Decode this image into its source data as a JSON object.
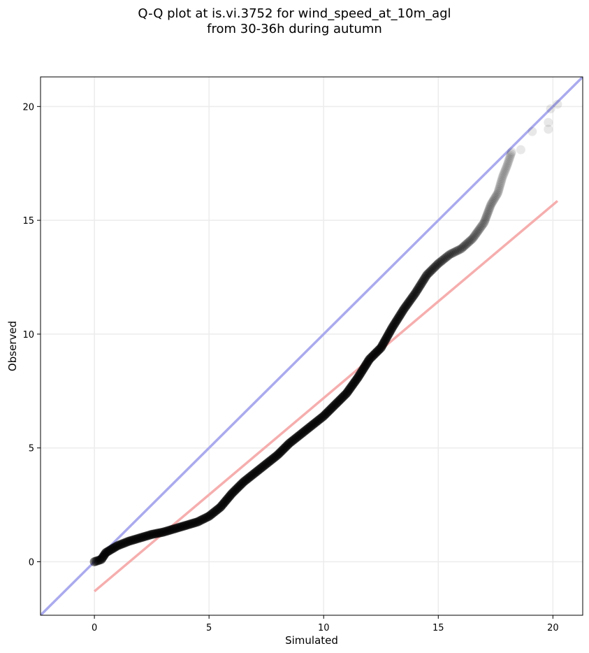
{
  "chart_data": {
    "type": "scatter",
    "title": "Q-Q plot at is.vi.3752 for wind_speed_at_10m_agl",
    "subtitle": "from 30-36h during autumn",
    "xlabel": "Simulated",
    "ylabel": "Observed",
    "xlim": [
      -2.35,
      21.3
    ],
    "ylim": [
      -2.35,
      21.3
    ],
    "xticks": [
      0,
      5,
      10,
      15,
      20
    ],
    "yticks": [
      0,
      5,
      10,
      15,
      20
    ],
    "grid": true,
    "reference_line": {
      "color": "#aaaaee",
      "points": [
        [
          -2.35,
          -2.35
        ],
        [
          21.3,
          21.3
        ]
      ]
    },
    "fit_line": {
      "color": "#f5aaaa",
      "points": [
        [
          0.0,
          -1.3
        ],
        [
          20.2,
          15.85
        ]
      ]
    },
    "quantile_curve": [
      [
        0.0,
        0.0
      ],
      [
        0.3,
        0.1
      ],
      [
        0.5,
        0.4
      ],
      [
        1.0,
        0.7
      ],
      [
        1.5,
        0.9
      ],
      [
        2.0,
        1.05
      ],
      [
        2.5,
        1.2
      ],
      [
        3.0,
        1.3
      ],
      [
        3.5,
        1.45
      ],
      [
        4.0,
        1.6
      ],
      [
        4.5,
        1.75
      ],
      [
        5.0,
        2.0
      ],
      [
        5.5,
        2.4
      ],
      [
        6.0,
        3.0
      ],
      [
        6.5,
        3.5
      ],
      [
        7.0,
        3.9
      ],
      [
        7.5,
        4.3
      ],
      [
        8.0,
        4.7
      ],
      [
        8.5,
        5.2
      ],
      [
        9.0,
        5.6
      ],
      [
        9.5,
        6.0
      ],
      [
        10.0,
        6.4
      ],
      [
        10.5,
        6.9
      ],
      [
        11.0,
        7.4
      ],
      [
        11.5,
        8.1
      ],
      [
        12.0,
        8.9
      ],
      [
        12.5,
        9.4
      ],
      [
        13.0,
        10.3
      ],
      [
        13.5,
        11.1
      ],
      [
        14.0,
        11.8
      ],
      [
        14.5,
        12.6
      ],
      [
        15.0,
        13.1
      ],
      [
        15.5,
        13.5
      ],
      [
        16.0,
        13.75
      ],
      [
        16.5,
        14.2
      ],
      [
        17.0,
        14.9
      ],
      [
        17.3,
        15.7
      ],
      [
        17.6,
        16.2
      ],
      [
        17.8,
        16.9
      ],
      [
        18.0,
        17.4
      ],
      [
        18.2,
        18.0
      ]
    ],
    "outlier_points": [
      [
        18.6,
        18.1
      ],
      [
        19.1,
        18.9
      ],
      [
        19.8,
        19.0
      ],
      [
        19.8,
        19.3
      ],
      [
        19.9,
        19.9
      ],
      [
        20.2,
        20.1
      ]
    ]
  }
}
